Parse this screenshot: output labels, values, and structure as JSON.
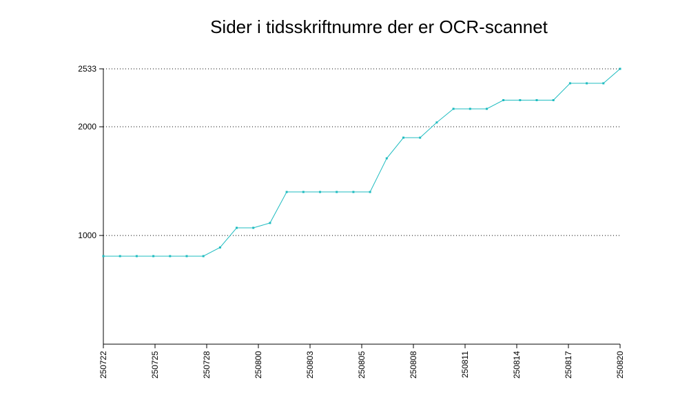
{
  "chart_data": {
    "type": "line",
    "title": "Sider i tidsskriftnumre der er OCR-scannet",
    "xlabel": "",
    "ylabel": "",
    "ylim": [
      0,
      2533
    ],
    "yticks": [
      1000,
      2000,
      2533
    ],
    "x_tick_labels": [
      "250722",
      "250725",
      "250728",
      "250800",
      "250803",
      "250805",
      "250808",
      "250811",
      "250814",
      "250817",
      "250820"
    ],
    "grid": "horizontal dotted",
    "colors": {
      "series": "#1fbcc0",
      "axis": "#000000",
      "grid": "#000000"
    },
    "series": [
      {
        "values": [
          810,
          810,
          810,
          810,
          810,
          810,
          810,
          890,
          1070,
          1070,
          1115,
          1400,
          1400,
          1400,
          1400,
          1400,
          1400,
          1710,
          1900,
          1900,
          2040,
          2165,
          2165,
          2165,
          2245,
          2245,
          2245,
          2245,
          2400,
          2400,
          2400,
          2533
        ]
      }
    ]
  }
}
